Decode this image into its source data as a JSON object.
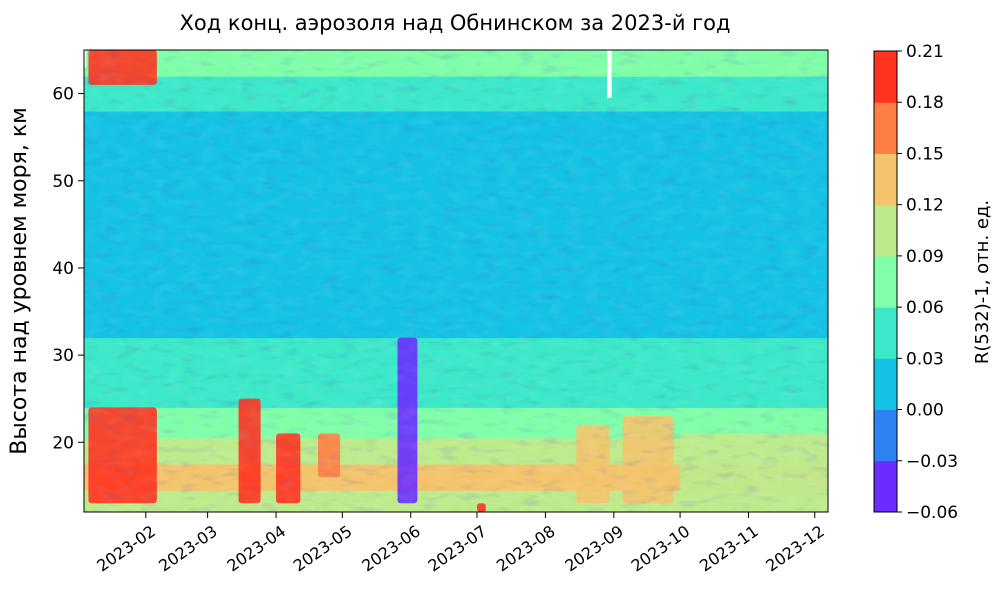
{
  "chart_data": {
    "type": "heatmap",
    "title": "Ход конц. аэрозоля над Обнинском за 2023-й год",
    "xlabel": "",
    "ylabel": "Высота над уровнем моря, км",
    "colorbar_label": "R(532)-1, отн. ед.",
    "x_range": [
      "2023-01-04",
      "2023-12-07"
    ],
    "x_ticks": [
      {
        "date": "2023-02-01",
        "label": "2023-02"
      },
      {
        "date": "2023-03-01",
        "label": "2023-03"
      },
      {
        "date": "2023-04-01",
        "label": "2023-04"
      },
      {
        "date": "2023-05-01",
        "label": "2023-05"
      },
      {
        "date": "2023-06-01",
        "label": "2023-06"
      },
      {
        "date": "2023-07-01",
        "label": "2023-07"
      },
      {
        "date": "2023-08-01",
        "label": "2023-08"
      },
      {
        "date": "2023-09-01",
        "label": "2023-09"
      },
      {
        "date": "2023-10-01",
        "label": "2023-10"
      },
      {
        "date": "2023-11-01",
        "label": "2023-11"
      },
      {
        "date": "2023-12-01",
        "label": "2023-12"
      }
    ],
    "ylim": [
      12,
      65
    ],
    "y_ticks": [
      {
        "value": 20,
        "label": "20"
      },
      {
        "value": 30,
        "label": "30"
      },
      {
        "value": 40,
        "label": "40"
      },
      {
        "value": 50,
        "label": "50"
      },
      {
        "value": 60,
        "label": "60"
      }
    ],
    "colorbar": {
      "levels": [
        -0.06,
        -0.03,
        0.0,
        0.03,
        0.06,
        0.09,
        0.12,
        0.15,
        0.18,
        0.21
      ],
      "tick_labels": [
        "−0.06",
        "−0.03",
        "0.00",
        "0.03",
        "0.06",
        "0.09",
        "0.12",
        "0.15",
        "0.18",
        "0.21"
      ],
      "colors": [
        "#6a2cff",
        "#2e82f2",
        "#14c2e4",
        "#3ce8c8",
        "#80ffa8",
        "#bdeb8c",
        "#f3c46c",
        "#ff7e44",
        "#ff3320"
      ]
    },
    "altitude_profile": [
      {
        "altitude_km": 13,
        "value": 0.1
      },
      {
        "altitude_km": 16,
        "value": 0.13
      },
      {
        "altitude_km": 19,
        "value": 0.11
      },
      {
        "altitude_km": 22,
        "value": 0.08
      },
      {
        "altitude_km": 26,
        "value": 0.055
      },
      {
        "altitude_km": 30,
        "value": 0.035
      },
      {
        "altitude_km": 34,
        "value": 0.012
      },
      {
        "altitude_km": 40,
        "value": 0.01
      },
      {
        "altitude_km": 46,
        "value": 0.008
      },
      {
        "altitude_km": 52,
        "value": 0.0
      },
      {
        "altitude_km": 56,
        "value": 0.02
      },
      {
        "altitude_km": 60,
        "value": 0.04
      },
      {
        "altitude_km": 64,
        "value": 0.06
      }
    ],
    "events": [
      {
        "start": "2023-01-06",
        "end": "2023-02-06",
        "altitude_range_km": [
          13,
          24
        ],
        "value": 0.19
      },
      {
        "start": "2023-01-06",
        "end": "2023-02-06",
        "altitude_range_km": [
          61,
          65
        ],
        "value": 0.19
      },
      {
        "start": "2023-03-15",
        "end": "2023-03-25",
        "altitude_range_km": [
          13,
          25
        ],
        "value": 0.19
      },
      {
        "start": "2023-04-01",
        "end": "2023-04-12",
        "altitude_range_km": [
          13,
          21
        ],
        "value": 0.19
      },
      {
        "start": "2023-04-20",
        "end": "2023-04-30",
        "altitude_range_km": [
          16,
          21
        ],
        "value": 0.17
      },
      {
        "start": "2023-05-26",
        "end": "2023-06-04",
        "altitude_range_km": [
          13,
          32
        ],
        "value": -0.04
      },
      {
        "start": "2023-07-01",
        "end": "2023-07-05",
        "altitude_range_km": [
          12,
          13
        ],
        "value": 0.19
      },
      {
        "start": "2023-08-15",
        "end": "2023-08-30",
        "altitude_range_km": [
          13,
          22
        ],
        "value": 0.13
      },
      {
        "start": "2023-09-05",
        "end": "2023-09-28",
        "altitude_range_km": [
          13,
          23
        ],
        "value": 0.14
      },
      {
        "start": "2023-10-01",
        "end": "2023-12-07",
        "altitude_range_km": [
          13,
          21
        ],
        "value": 0.1
      }
    ],
    "missing_data": [
      {
        "start": "2023-01-04",
        "end": "2023-01-05",
        "altitude_range_km": [
          63,
          65
        ]
      },
      {
        "start": "2023-08-29",
        "end": "2023-08-31",
        "altitude_range_km": [
          59.5,
          65
        ]
      }
    ]
  }
}
